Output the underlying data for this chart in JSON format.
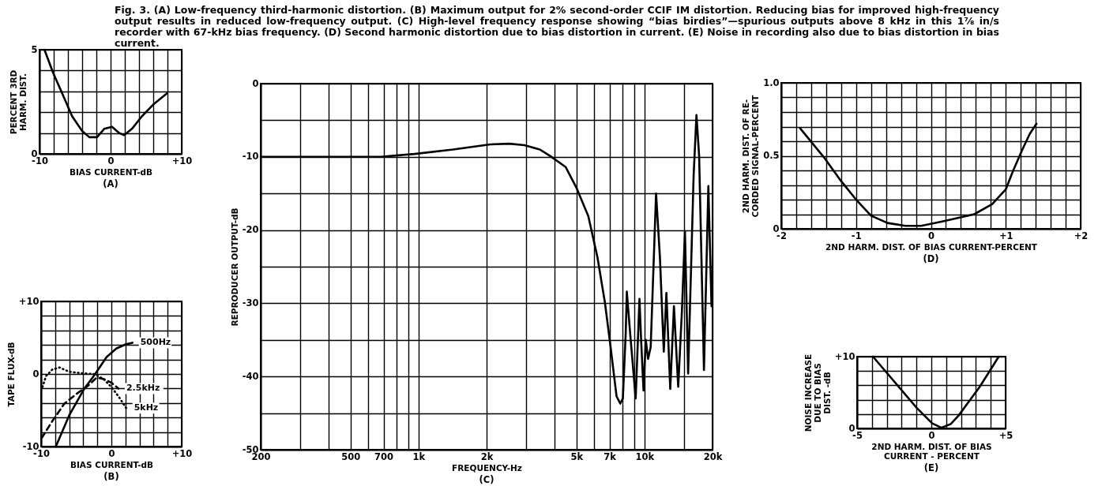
{
  "chart_data": [
    {
      "type": "line",
      "title": "(A)",
      "xlabel": "BIAS CURRENT-dB",
      "ylabel": "PERCENT 3RD\nHARM. DIST.",
      "annotations": [
        "Fig. 3. (A) Low-frequency third-harmonic distortion. (B) Maximum output for 2% second-order CCIF IM distortion. Reducing bias for improved high-frequency output results in reduced low-frequency output. (C) High-level frequency response showing “bias birdies”—spurious outputs above 8 kHz in this 1⅞ in/s recorder with 67-kHz bias frequency. (D) Second harmonic distortion due to bias distortion in current. (E) Noise in recording also due to bias distortion in bias current."
      ],
      "x": [
        -9.3,
        -8.1,
        -6.8,
        -5.4,
        -4.0,
        -3.0,
        -1.9,
        -0.9,
        0.2,
        1.2,
        1.9,
        3.0,
        4.4,
        6.1,
        7.9
      ],
      "series": [
        {
          "color": "#000000",
          "line_style": "solid",
          "values": [
            5,
            3.9,
            2.9,
            1.8,
            1.1,
            0.8,
            0.8,
            1.2,
            1.3,
            1.0,
            0.9,
            1.2,
            1.8,
            2.4,
            2.9
          ]
        }
      ],
      "xlim": [
        -10,
        10
      ],
      "ylim": [
        0,
        5
      ],
      "xticks": [
        -10,
        {
          "value": -8,
          "label": null
        },
        {
          "value": -6,
          "label": null
        },
        {
          "value": -4,
          "label": null
        },
        {
          "value": -2,
          "label": null
        },
        0,
        {
          "value": 2,
          "label": null
        },
        {
          "value": 4,
          "label": null
        },
        {
          "value": 6,
          "label": null
        },
        {
          "value": 8,
          "label": null
        },
        {
          "value": 10,
          "label": "+10"
        }
      ],
      "yticks": [
        0,
        {
          "value": 1,
          "label": null
        },
        {
          "value": 2,
          "label": null
        },
        {
          "value": 3,
          "label": null
        },
        {
          "value": 4,
          "label": null
        },
        5
      ],
      "grid": true
    },
    {
      "type": "line",
      "title": "(B)",
      "xlabel": "BIAS CURRENT-dB",
      "ylabel": "TAPE FLUX-dB",
      "series": [
        {
          "name": "500Hz",
          "color": "#000000",
          "line_style": "solid",
          "x": [
            -7.9,
            -6.0,
            -3.9,
            -2.3,
            -0.7,
            0.7,
            2.1,
            3.0
          ],
          "values": [
            -10,
            -5.7,
            -2.1,
            0,
            2.3,
            3.5,
            4.1,
            4.3
          ]
        },
        {
          "name": "2.5kHz",
          "color": "#000000",
          "line_style": "dashed",
          "x": [
            -9.9,
            -8.4,
            -6.7,
            -4.9,
            -3.3,
            -2.1,
            -1.1,
            0,
            1.0
          ],
          "values": [
            -8.8,
            -6.5,
            -4.1,
            -2.7,
            -1.6,
            -0.5,
            -0.7,
            -1.2,
            -2.0
          ]
        },
        {
          "name": "5kHz",
          "color": "#000000",
          "line_style": "dotted",
          "x": [
            -9.8,
            -9.3,
            -8.4,
            -7.4,
            -6.0,
            -4.2,
            -2.5,
            -1.1,
            0,
            1.1,
            2.1
          ],
          "values": [
            -1.8,
            -0.3,
            0.6,
            0.9,
            0.3,
            0.1,
            0,
            -0.7,
            -1.8,
            -3.2,
            -4.7
          ]
        }
      ],
      "xlim": [
        -10,
        10
      ],
      "ylim": [
        -10,
        10
      ],
      "xticks": [
        -10,
        {
          "value": -8,
          "label": null
        },
        {
          "value": -6,
          "label": null
        },
        {
          "value": -4,
          "label": null
        },
        {
          "value": -2,
          "label": null
        },
        0,
        {
          "value": 2,
          "label": null
        },
        {
          "value": 4,
          "label": null
        },
        {
          "value": 6,
          "label": null
        },
        {
          "value": 8,
          "label": null
        },
        {
          "value": 10,
          "label": "+10"
        }
      ],
      "yticks": [
        -10,
        {
          "value": -8,
          "label": null
        },
        {
          "value": -6,
          "label": null
        },
        {
          "value": -4,
          "label": null
        },
        {
          "value": -2,
          "label": null
        },
        0,
        {
          "value": 2,
          "label": null
        },
        {
          "value": 4,
          "label": null
        },
        {
          "value": 6,
          "label": null
        },
        {
          "value": 8,
          "label": null
        },
        {
          "value": 10,
          "label": "+10"
        }
      ],
      "grid": true
    },
    {
      "type": "line",
      "title": "(C)",
      "xlabel": "FREQUENCY-Hz",
      "ylabel": "REPRODUCER OUTPUT-dB",
      "log": "x",
      "x": [
        200,
        680,
        960,
        1420,
        2080,
        2520,
        2940,
        3440,
        3830,
        4480,
        5010,
        5640,
        6190,
        6680,
        7080,
        7520,
        7810,
        8020,
        8260,
        8350,
        8500,
        8660,
        9140,
        9500,
        9660,
        9900,
        10130,
        10370,
        10650,
        11250,
        11700,
        12170,
        12500,
        13000,
        13500,
        14100,
        14650,
        15100,
        15600,
        16500,
        16980,
        17450,
        18330,
        19170,
        19800
      ],
      "series": [
        {
          "color": "#000000",
          "line_style": "solid",
          "values": [
            -10,
            -10,
            -9.6,
            -9.0,
            -8.3,
            -8.2,
            -8.4,
            -9.0,
            -9.9,
            -11.4,
            -14.3,
            -18.1,
            -23.7,
            -29.9,
            -36,
            -42.7,
            -43.7,
            -43,
            -34,
            -28.4,
            -31.4,
            -34.5,
            -43,
            -29.4,
            -35,
            -41.9,
            -35,
            -37.6,
            -36,
            -15,
            -23.7,
            -36.6,
            -28.6,
            -41.7,
            -30.4,
            -41.4,
            -30.9,
            -20.2,
            -39.6,
            -12.5,
            -4.3,
            -9.9,
            -39.1,
            -14,
            -30.4
          ]
        }
      ],
      "xlim": [
        200,
        20000
      ],
      "ylim": [
        -50,
        0
      ],
      "xticks": [
        200,
        {
          "value": 300,
          "label": null
        },
        {
          "value": 400,
          "label": null
        },
        500,
        {
          "value": 600,
          "label": null
        },
        700,
        {
          "value": 800,
          "label": null
        },
        {
          "value": 900,
          "label": null
        },
        {
          "value": 1000,
          "label": "1k"
        },
        {
          "value": 2000,
          "label": "2k"
        },
        {
          "value": 3000,
          "label": null
        },
        {
          "value": 4000,
          "label": null
        },
        {
          "value": 5000,
          "label": "5k"
        },
        {
          "value": 6000,
          "label": null
        },
        {
          "value": 7000,
          "label": "7k"
        },
        {
          "value": 8000,
          "label": null
        },
        {
          "value": 9000,
          "label": null
        },
        {
          "value": 10000,
          "label": "10k"
        },
        {
          "value": 15000,
          "label": null
        },
        {
          "value": 20000,
          "label": "20k"
        }
      ],
      "yticks": [
        -50,
        {
          "value": -45,
          "label": null
        },
        -40,
        {
          "value": -35,
          "label": null
        },
        -30,
        {
          "value": -25,
          "label": null
        },
        -20,
        {
          "value": -15,
          "label": null
        },
        -10,
        {
          "value": -5,
          "label": null
        },
        0
      ],
      "grid": true
    },
    {
      "type": "line",
      "title": "(D)",
      "xlabel": "2ND HARM. DIST. OF BIAS CURRENT-PERCENT",
      "ylabel": "2ND HARM. DIST. OF RE-\nCORDED SIGNAL-PERCENT",
      "x": [
        -1.75,
        -1.43,
        -1.22,
        -1.0,
        -0.8,
        -0.58,
        -0.34,
        -0.13,
        0.15,
        0.58,
        0.82,
        1.0,
        1.1,
        1.21,
        1.32,
        1.41
      ],
      "series": [
        {
          "color": "#000000",
          "line_style": "solid",
          "values": [
            0.69,
            0.49,
            0.34,
            0.2,
            0.09,
            0.04,
            0.02,
            0.02,
            0.05,
            0.1,
            0.17,
            0.27,
            0.4,
            0.53,
            0.65,
            0.72
          ]
        }
      ],
      "xlim": [
        -2,
        2
      ],
      "ylim": [
        0,
        1
      ],
      "xticks": [
        -2,
        {
          "value": -1.8,
          "label": null
        },
        {
          "value": -1.6,
          "label": null
        },
        {
          "value": -1.4,
          "label": null
        },
        {
          "value": -1.2,
          "label": null
        },
        -1,
        {
          "value": -0.8,
          "label": null
        },
        {
          "value": -0.6,
          "label": null
        },
        {
          "value": -0.4,
          "label": null
        },
        {
          "value": -0.2,
          "label": null
        },
        0,
        {
          "value": 0.2,
          "label": null
        },
        {
          "value": 0.4,
          "label": null
        },
        {
          "value": 0.6,
          "label": null
        },
        {
          "value": 0.8,
          "label": null
        },
        {
          "value": 1,
          "label": "+1"
        },
        {
          "value": 1.2,
          "label": null
        },
        {
          "value": 1.4,
          "label": null
        },
        {
          "value": 1.6,
          "label": null
        },
        {
          "value": 1.8,
          "label": null
        },
        {
          "value": 2,
          "label": "+2"
        }
      ],
      "yticks": [
        0,
        {
          "value": 0.1,
          "label": null
        },
        {
          "value": 0.2,
          "label": null
        },
        {
          "value": 0.3,
          "label": null
        },
        {
          "value": 0.4,
          "label": null
        },
        0.5,
        {
          "value": 0.6,
          "label": null
        },
        {
          "value": 0.7,
          "label": null
        },
        {
          "value": 0.8,
          "label": null
        },
        {
          "value": 0.9,
          "label": null
        },
        {
          "value": 1,
          "label": "1.0"
        }
      ],
      "grid": true
    },
    {
      "type": "line",
      "title": "(E)",
      "xlabel": "2ND HARM. DIST. OF BIAS\nCURRENT - PERCENT",
      "ylabel": "NOISE INCREASE\nDUE TO BIAS\nDIST. -dB",
      "x": [
        -3.93,
        -1.0,
        0.06,
        0.68,
        1.3,
        1.84,
        3.26,
        4.54
      ],
      "series": [
        {
          "color": "#000000",
          "line_style": "solid",
          "values": [
            10,
            2.9,
            0.7,
            0.1,
            0.6,
            1.8,
            5.8,
            10
          ]
        }
      ],
      "xlim": [
        -5,
        5
      ],
      "ylim": [
        0,
        10
      ],
      "xticks": [
        -5,
        {
          "value": -4,
          "label": null
        },
        {
          "value": -3,
          "label": null
        },
        {
          "value": -2,
          "label": null
        },
        {
          "value": -1,
          "label": null
        },
        0,
        {
          "value": 1,
          "label": null
        },
        {
          "value": 2,
          "label": null
        },
        {
          "value": 3,
          "label": null
        },
        {
          "value": 4,
          "label": null
        },
        {
          "value": 5,
          "label": "+5"
        }
      ],
      "yticks": [
        0,
        {
          "value": 2,
          "label": null
        },
        {
          "value": 4,
          "label": null
        },
        {
          "value": 6,
          "label": null
        },
        {
          "value": 8,
          "label": null
        },
        {
          "value": 10,
          "label": "+10"
        }
      ],
      "grid": true
    }
  ]
}
